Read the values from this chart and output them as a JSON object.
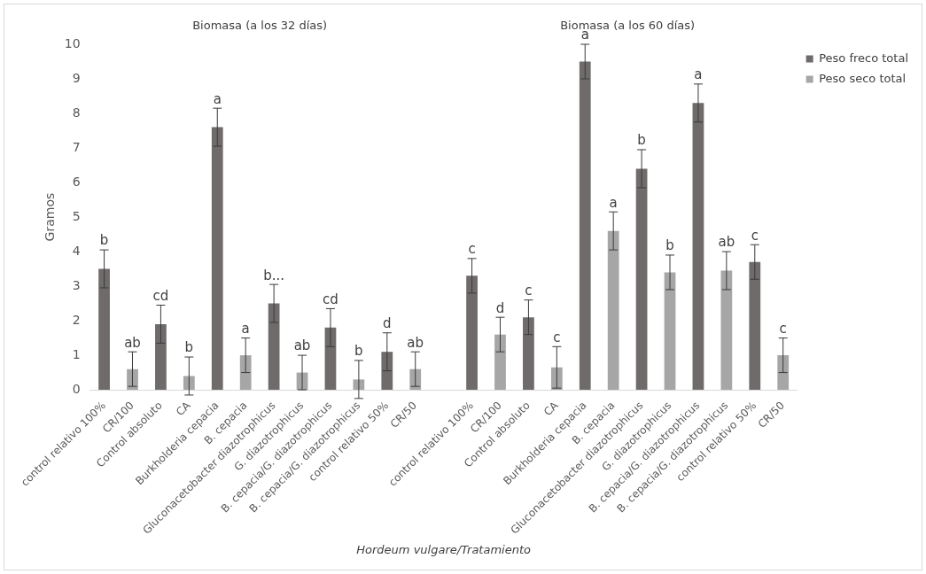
{
  "chart_data": {
    "type": "bar",
    "ylabel": "Gramos",
    "xlabel": "Hordeum vulgare/Tratamiento",
    "annotations": [
      "Biomasa (a los 32 días)",
      "Biomasa (a los 60 días)"
    ],
    "categories": [
      "control relativo 100%",
      "CR/100",
      "Control absoluto",
      "CA",
      "Burkholderia cepacia",
      "B. cepacia",
      "Gluconacetobacter diazotrophicus",
      "G. diazotrophicus",
      "B. cepacia/G. diazotrophicus",
      "B. cepacia/G. diazotrophicus",
      "control relativo 50%",
      "CR/50",
      null,
      "control relativo 100%",
      "CR/100",
      "Control absoluto",
      "CA",
      "Burkholderia cepacia",
      "B. cepacia",
      "Gluconacetobacter diazotrophicus",
      "G. diazotrophicus",
      "B. cepacia/G. diazotrophicus",
      "B. cepacia/G. diazotrophicus",
      "control relativo 50%",
      "CR/50"
    ],
    "series": [
      {
        "name": "Peso freco total",
        "color": "#706b6b",
        "values": [
          3.5,
          null,
          1.9,
          null,
          7.6,
          null,
          2.5,
          null,
          1.8,
          null,
          1.1,
          null,
          null,
          3.3,
          null,
          2.1,
          null,
          9.5,
          null,
          6.4,
          null,
          8.3,
          null,
          3.7,
          null
        ],
        "errors": [
          0.55,
          null,
          0.55,
          null,
          0.55,
          null,
          0.55,
          null,
          0.55,
          null,
          0.55,
          null,
          null,
          0.5,
          null,
          0.5,
          null,
          0.5,
          null,
          0.55,
          null,
          0.55,
          null,
          0.5,
          null
        ],
        "value_labels": [
          "b",
          null,
          "cd",
          null,
          "a",
          null,
          "b...",
          null,
          "cd",
          null,
          "d",
          null,
          null,
          "c",
          null,
          "c",
          null,
          "a",
          null,
          "b",
          null,
          "a",
          null,
          "c",
          null
        ]
      },
      {
        "name": "Peso seco total",
        "color": "#a6a6a6",
        "values": [
          null,
          0.6,
          null,
          0.4,
          null,
          1.0,
          null,
          0.5,
          null,
          0.3,
          null,
          0.6,
          null,
          null,
          1.6,
          null,
          0.65,
          null,
          4.6,
          null,
          3.4,
          null,
          3.45,
          null,
          1.0
        ],
        "errors": [
          null,
          0.5,
          null,
          0.55,
          null,
          0.5,
          null,
          0.5,
          null,
          0.55,
          null,
          0.5,
          null,
          null,
          0.5,
          null,
          0.6,
          null,
          0.55,
          null,
          0.5,
          null,
          0.55,
          null,
          0.5
        ],
        "value_labels": [
          null,
          "ab",
          null,
          "b",
          null,
          "a",
          null,
          "ab",
          null,
          "b",
          null,
          "ab",
          null,
          null,
          "d",
          null,
          "c",
          null,
          "a",
          null,
          "b",
          null,
          "ab",
          null,
          "c"
        ]
      }
    ],
    "ylim": [
      0,
      10
    ],
    "yticks": [
      0,
      1,
      2,
      3,
      4,
      5,
      6,
      7,
      8,
      9,
      10
    ],
    "legend": "top right"
  }
}
